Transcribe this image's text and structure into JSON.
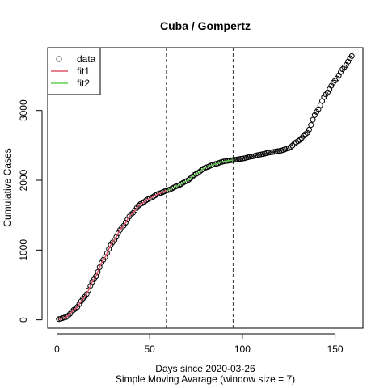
{
  "chart_data": {
    "type": "scatter",
    "title": "Cuba / Gompertz",
    "xlabel": "Days since 2020-03-26",
    "xlabel2": "Simple Moving Avarage (window size = 7)",
    "ylabel": "Cumulative Cases",
    "xlim": [
      -5,
      165
    ],
    "ylim": [
      -120,
      3900
    ],
    "x_ticks": [
      0,
      50,
      100,
      150
    ],
    "y_ticks": [
      0,
      1000,
      2000,
      3000
    ],
    "vlines": [
      59,
      95
    ],
    "legend_position": "top-left",
    "legend": [
      {
        "label": "data",
        "kind": "point",
        "color": "#000000"
      },
      {
        "label": "fit1",
        "kind": "line",
        "color": "#DF536B"
      },
      {
        "label": "fit2",
        "kind": "line",
        "color": "#61D04F"
      }
    ],
    "series": [
      {
        "name": "data",
        "kind": "points",
        "color": "#000000",
        "anchors": [
          [
            1,
            10
          ],
          [
            5,
            40
          ],
          [
            10,
            160
          ],
          [
            15,
            330
          ],
          [
            20,
            580
          ],
          [
            25,
            860
          ],
          [
            30,
            1110
          ],
          [
            35,
            1320
          ],
          [
            40,
            1510
          ],
          [
            45,
            1660
          ],
          [
            50,
            1740
          ],
          [
            55,
            1810
          ],
          [
            60,
            1860
          ],
          [
            65,
            1920
          ],
          [
            70,
            1990
          ],
          [
            75,
            2090
          ],
          [
            80,
            2180
          ],
          [
            85,
            2230
          ],
          [
            90,
            2270
          ],
          [
            95,
            2290
          ],
          [
            100,
            2310
          ],
          [
            105,
            2340
          ],
          [
            110,
            2370
          ],
          [
            115,
            2400
          ],
          [
            120,
            2420
          ],
          [
            125,
            2460
          ],
          [
            130,
            2560
          ],
          [
            135,
            2680
          ],
          [
            140,
            2980
          ],
          [
            145,
            3230
          ],
          [
            150,
            3430
          ],
          [
            155,
            3620
          ],
          [
            159,
            3780
          ]
        ]
      },
      {
        "name": "fit1",
        "kind": "line",
        "color": "#DF536B",
        "points": [
          [
            1,
            10
          ],
          [
            5,
            40
          ],
          [
            10,
            160
          ],
          [
            15,
            330
          ],
          [
            20,
            580
          ],
          [
            25,
            860
          ],
          [
            30,
            1110
          ],
          [
            35,
            1320
          ],
          [
            40,
            1510
          ],
          [
            45,
            1660
          ],
          [
            50,
            1740
          ],
          [
            55,
            1810
          ],
          [
            59,
            1850
          ]
        ]
      },
      {
        "name": "fit2",
        "kind": "line",
        "color": "#61D04F",
        "points": [
          [
            59,
            1850
          ],
          [
            65,
            1920
          ],
          [
            70,
            1990
          ],
          [
            75,
            2090
          ],
          [
            80,
            2180
          ],
          [
            85,
            2230
          ],
          [
            90,
            2270
          ],
          [
            95,
            2290
          ]
        ]
      }
    ]
  }
}
